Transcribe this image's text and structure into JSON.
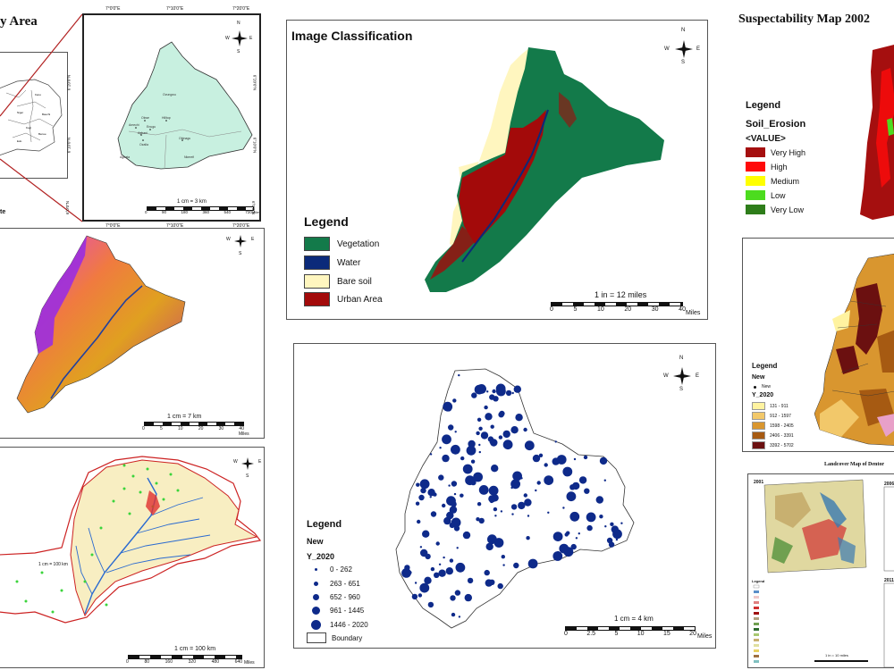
{
  "study_area": {
    "title": "y Area",
    "state_label": "te",
    "inset": {
      "top_coords": [
        "7°0'0\"E",
        "7°10'0\"E",
        "7°20'0\"E"
      ],
      "bottom_coords": [
        "7°0'0\"E",
        "7°10'0\"E",
        "7°20'0\"E"
      ],
      "left_coords": [
        "6°20'0\"N",
        "6°10'0\"N",
        "6°0'0\"N"
      ],
      "right_coords": [
        "6°20'0\"N",
        "6°10'0\"N",
        "6°0'0\"N"
      ],
      "scale_text": "1 cm = 3 km",
      "scale_ticks": [
        "0",
        "90",
        "180",
        "360",
        "540",
        "720"
      ],
      "scale_unit": "Miles",
      "places": [
        "Okwe",
        "Hilltop",
        "Amechi",
        "Enugu",
        "Agbani",
        "Ozalla",
        "Obinagu",
        "Nkerefi"
      ]
    }
  },
  "heat_map": {
    "scale_text": "1 cm = 7 km",
    "scale_ticks": [
      "0",
      "5",
      "10",
      "20",
      "30",
      "40"
    ],
    "scale_unit": "Miles"
  },
  "river_map": {
    "scale_text": "1 cm = 100 km",
    "inner_label": "1 cm = 100 km",
    "scale_ticks": [
      "0",
      "80",
      "160",
      "320",
      "480",
      "640"
    ],
    "scale_unit": "Miles"
  },
  "classification": {
    "title": "Image Classification",
    "legend_title": "Legend",
    "classes": [
      {
        "label": "Vegetation",
        "color": "#137a4a"
      },
      {
        "label": "Water",
        "color": "#0b2a7a"
      },
      {
        "label": "Bare soil",
        "color": "#fff6bf"
      },
      {
        "label": "Urban Area",
        "color": "#a30a0a"
      }
    ],
    "scale_text": "1 in = 12 miles",
    "scale_ticks": [
      "0",
      "5",
      "10",
      "20",
      "30",
      "40"
    ],
    "scale_unit": "Miles"
  },
  "points_map": {
    "legend_title": "Legend",
    "layer": "New",
    "field": "Y_2020",
    "classes": [
      "0 - 262",
      "263 - 651",
      "652 - 960",
      "961 - 1445",
      "1446 - 2020"
    ],
    "boundary_label": "Boundary",
    "scale_text": "1 cm = 4 km",
    "scale_ticks": [
      "0",
      "2.5",
      "5",
      "10",
      "15",
      "20"
    ],
    "scale_unit": "Miles"
  },
  "susceptibility": {
    "title": "Suspectability Map 2002",
    "legend_title": "Legend",
    "layer": "Soil_Erosion",
    "field": "<VALUE>",
    "classes": [
      {
        "label": "Very High",
        "color": "#a50f0f"
      },
      {
        "label": "High",
        "color": "#ff0a0a"
      },
      {
        "label": "Medium",
        "color": "#ffff00"
      },
      {
        "label": "Low",
        "color": "#4cdc1e"
      },
      {
        "label": "Very Low",
        "color": "#2e7d1a"
      }
    ]
  },
  "choropleth": {
    "legend_title": "Legend",
    "layer": "New",
    "point_label": "New",
    "field": "Y_2020",
    "classes": [
      {
        "label": "131 - 911",
        "color": "#fff3a0"
      },
      {
        "label": "912 - 1597",
        "color": "#f2c86a"
      },
      {
        "label": "1598 - 2405",
        "color": "#d9962f"
      },
      {
        "label": "2406 - 3391",
        "color": "#a65a12"
      },
      {
        "label": "3392 - 5702",
        "color": "#6b1010"
      }
    ]
  },
  "landcover": {
    "title": "Landcover Map of Dentor",
    "years": [
      "2001",
      "2006",
      "2011"
    ],
    "legend_title": "Legend",
    "scale_text": "1 in = 10 miles"
  },
  "north": {
    "n": "N",
    "s": "S",
    "e": "E",
    "w": "W"
  }
}
